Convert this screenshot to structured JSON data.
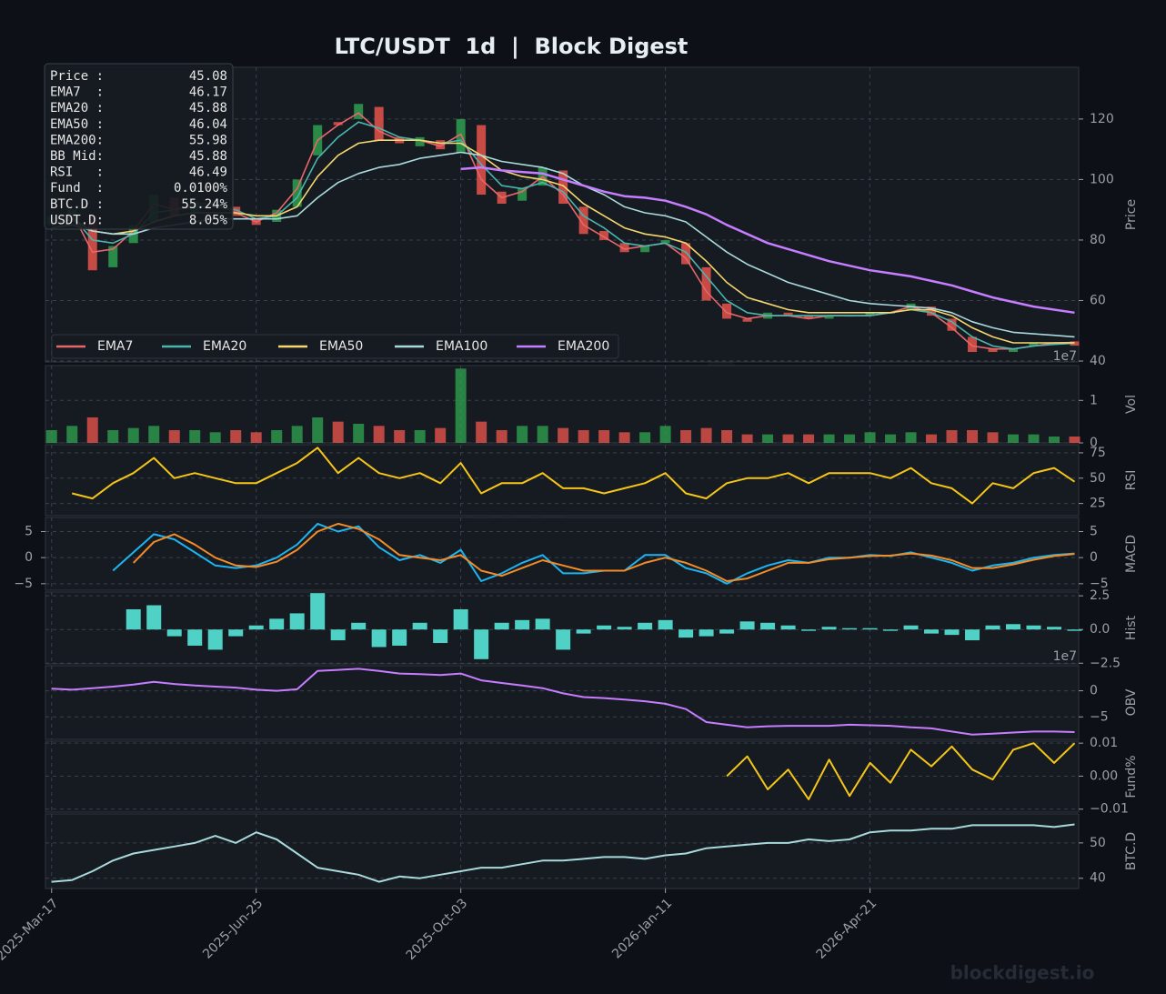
{
  "title": "LTC/USDT  1d  |  Block Digest",
  "watermark": "blockdigest.io",
  "footer": "blockdigest.io",
  "info_box": {
    "rows": [
      [
        "Price :",
        "45.08"
      ],
      [
        "EMA7  :",
        "46.17"
      ],
      [
        "EMA20 :",
        "45.88"
      ],
      [
        "EMA50 :",
        "46.04"
      ],
      [
        "EMA200:",
        "55.98"
      ],
      [
        "BB Mid:",
        "45.88"
      ],
      [
        "RSI   :",
        "46.49"
      ],
      [
        "Fund  :",
        "0.0100%"
      ],
      [
        "BTC.D :",
        "55.24%"
      ],
      [
        "USDT.D:",
        "8.05%"
      ]
    ]
  },
  "chart_data": {
    "type": "financial",
    "x": [
      "2025-03-17",
      "2025-03-27",
      "2025-04-06",
      "2025-04-16",
      "2025-04-26",
      "2025-05-06",
      "2025-05-16",
      "2025-05-26",
      "2025-06-05",
      "2025-06-15",
      "2025-06-25",
      "2025-07-05",
      "2025-07-15",
      "2025-07-25",
      "2025-08-04",
      "2025-08-14",
      "2025-08-24",
      "2025-09-03",
      "2025-09-13",
      "2025-09-23",
      "2025-10-03",
      "2025-10-13",
      "2025-10-23",
      "2025-11-02",
      "2025-11-12",
      "2025-11-22",
      "2025-12-02",
      "2025-12-12",
      "2025-12-22",
      "2026-01-01",
      "2026-01-11",
      "2026-01-21",
      "2026-01-31",
      "2026-02-10",
      "2026-02-20",
      "2026-03-02",
      "2026-03-12",
      "2026-03-22",
      "2026-04-01",
      "2026-04-11",
      "2026-04-21",
      "2026-05-01",
      "2026-05-11",
      "2026-05-21",
      "2026-05-31",
      "2026-06-10",
      "2026-06-20",
      "2026-06-30",
      "2026-07-10",
      "2026-07-20",
      "2026-07-30"
    ],
    "xlim": [
      "2025-03-14",
      "2026-08-01"
    ],
    "xticks": [
      {
        "value": "2025-03-17",
        "label": "2025-Mar-17"
      },
      {
        "value": "2025-06-25",
        "label": "2025-Jun-25"
      },
      {
        "value": "2025-10-03",
        "label": "2025-Oct-03"
      },
      {
        "value": "2026-01-11",
        "label": "2026-Jan-11"
      },
      {
        "value": "2026-04-21",
        "label": "2026-Apr-21"
      }
    ],
    "grid": true,
    "panels": [
      {
        "type": "candlestick",
        "ylabel": "Price",
        "ylim": [
          39.7,
          137.1
        ],
        "yticks": [
          40,
          60,
          80,
          100,
          120
        ],
        "up_color": "#2e9e4f",
        "down_color": "#e5534b",
        "legend": "lower left",
        "open": [
          85,
          88,
          88,
          71,
          79,
          86,
          94,
          89,
          92,
          91,
          87,
          86,
          91,
          108,
          119,
          120,
          124,
          114,
          111,
          113,
          109,
          118,
          96,
          93,
          98,
          103,
          91,
          83,
          79,
          76,
          79,
          79,
          71,
          59,
          54,
          54,
          56,
          55,
          54,
          55,
          55,
          56,
          57,
          58,
          54,
          48,
          44,
          43,
          45,
          46,
          46.5
        ],
        "close": [
          88,
          90,
          70,
          78,
          85,
          95,
          88,
          93,
          92,
          88,
          85,
          90,
          100,
          118,
          118,
          125,
          113,
          112,
          114,
          110,
          120,
          95,
          92,
          97,
          104,
          92,
          82,
          80,
          76,
          78,
          80,
          72,
          60,
          54,
          53,
          56,
          55,
          54,
          55,
          55,
          56,
          56,
          59,
          55,
          50,
          43,
          43,
          44,
          46,
          46,
          45.08
        ],
        "series": [
          {
            "name": "EMA7",
            "color": "#e8666a",
            "values": [
              86,
              89,
              76,
              77,
              83,
              92,
              90,
              92,
              92,
              89,
              86,
              89,
              97,
              113,
              118,
              122,
              116,
              113,
              113,
              111,
              115,
              100,
              94,
              96,
              101,
              95,
              85,
              81,
              77,
              78,
              79,
              74,
              63,
              56,
              54,
              55,
              55,
              54,
              55,
              55,
              55,
              56,
              58,
              56,
              51,
              45,
              44,
              44,
              45,
              46,
              46.17
            ]
          },
          {
            "name": "EMA20",
            "color": "#4ab5ae",
            "values": [
              85,
              88,
              80,
              79,
              82,
              89,
              90,
              91,
              91,
              90,
              87,
              88,
              94,
              107,
              114,
              119,
              117,
              114,
              113,
              112,
              113,
              105,
              98,
              97,
              99,
              96,
              88,
              84,
              79,
              78,
              79,
              76,
              68,
              60,
              56,
              55,
              55,
              55,
              55,
              55,
              55,
              56,
              57,
              56,
              53,
              48,
              45,
              44,
              45,
              45.5,
              45.88
            ]
          },
          {
            "name": "EMA50",
            "color": "#f5d76e",
            "values": [
              85,
              87,
              83,
              82,
              83,
              86,
              88,
              89,
              89,
              89,
              88,
              88,
              91,
              101,
              108,
              112,
              113,
              113,
              113,
              112,
              112,
              108,
              103,
              101,
              100,
              98,
              92,
              88,
              84,
              82,
              81,
              79,
              73,
              66,
              61,
              59,
              57,
              56,
              56,
              56,
              56,
              56,
              57,
              57,
              55,
              51,
              48,
              46,
              46,
              46,
              46.04
            ]
          },
          {
            "name": "EMA100",
            "color": "#a8dadc",
            "values": [
              84,
              85,
              83,
              82,
              82,
              84,
              85,
              86,
              87,
              87,
              87,
              87,
              88,
              94,
              99,
              102,
              104,
              105,
              107,
              108,
              109,
              108,
              106,
              105,
              104,
              102,
              98,
              95,
              91,
              89,
              88,
              86,
              81,
              76,
              72,
              69,
              66,
              64,
              62,
              60,
              59,
              58.5,
              58,
              57.5,
              56,
              53,
              51,
              49.5,
              49,
              48.5,
              48
            ]
          },
          {
            "name": "EMA200",
            "color": "#c77dff",
            "values": [
              null,
              null,
              null,
              null,
              null,
              null,
              null,
              null,
              null,
              null,
              null,
              null,
              null,
              null,
              null,
              null,
              null,
              null,
              null,
              null,
              103.5,
              104,
              103,
              102.5,
              102,
              100,
              98,
              96,
              94.5,
              94,
              93,
              91,
              88.5,
              85,
              82,
              79,
              77,
              75,
              73,
              71.5,
              70,
              69,
              68,
              66.5,
              65,
              63,
              61,
              59.5,
              58,
              57,
              55.98
            ]
          }
        ]
      },
      {
        "type": "bar",
        "ylabel": "Vol",
        "ylim": [
          0,
          18200000
        ],
        "yticks": [
          0,
          {
            "value": 10000000,
            "label": "1"
          }
        ],
        "offset_label": "1e7",
        "values": [
          3000000,
          4000000,
          6000000,
          3000000,
          3500000,
          4000000,
          3000000,
          3000000,
          2500000,
          3000000,
          2500000,
          3000000,
          4000000,
          6000000,
          5000000,
          4500000,
          4000000,
          3000000,
          3000000,
          3500000,
          17500000,
          5000000,
          3000000,
          4000000,
          4000000,
          3500000,
          3000000,
          3000000,
          2500000,
          2500000,
          4000000,
          3000000,
          3500000,
          3000000,
          2000000,
          2000000,
          2000000,
          2000000,
          2000000,
          2000000,
          2500000,
          2000000,
          2500000,
          2000000,
          3000000,
          3000000,
          2500000,
          2000000,
          2000000,
          1500000,
          1500000
        ]
      },
      {
        "type": "line",
        "ylabel": "RSI",
        "ylim": [
          13,
          83
        ],
        "yticks": [
          25,
          50,
          75
        ],
        "series": [
          {
            "color": "#f5c518",
            "values": [
              null,
              35,
              30,
              45,
              55,
              70,
              50,
              55,
              50,
              45,
              45,
              55,
              65,
              80,
              55,
              70,
              55,
              50,
              55,
              45,
              65,
              35,
              45,
              45,
              55,
              40,
              40,
              35,
              40,
              45,
              55,
              35,
              30,
              45,
              50,
              50,
              55,
              45,
              55,
              55,
              55,
              50,
              60,
              45,
              40,
              25,
              45,
              40,
              55,
              60,
              46.49
            ]
          }
        ]
      },
      {
        "type": "line",
        "ylabel": "MACD",
        "ylim": [
          -6.25,
          7.7
        ],
        "yticks": [
          {
            "value": -5,
            "label": "−5"
          },
          0,
          5
        ],
        "left_ticks": true,
        "series": [
          {
            "color": "#1eb4f0",
            "values": [
              null,
              null,
              null,
              -2.5,
              1,
              4.5,
              3.5,
              1,
              -1.5,
              -2,
              -1.5,
              0,
              2.5,
              6.5,
              5,
              6,
              2,
              -0.5,
              0.5,
              -1,
              1.5,
              -4.5,
              -3,
              -1,
              0.5,
              -3,
              -3,
              -2.5,
              -2.5,
              0.5,
              0.5,
              -2,
              -3,
              -5,
              -3,
              -1.5,
              -0.5,
              -1,
              0,
              0,
              0.5,
              0.3,
              1,
              0,
              -1,
              -2.5,
              -1.5,
              -1,
              0,
              0.5,
              0.8
            ]
          },
          {
            "color": "#f28c28",
            "values": [
              null,
              null,
              null,
              null,
              -1,
              3,
              4.5,
              2.5,
              0,
              -1.5,
              -1.8,
              -0.8,
              1.5,
              5,
              6.5,
              5.5,
              3.5,
              0.5,
              0,
              -0.5,
              0.5,
              -2.5,
              -3.5,
              -2,
              -0.5,
              -1.5,
              -2.5,
              -2.5,
              -2.5,
              -1,
              0,
              -1,
              -2.5,
              -4.5,
              -4,
              -2.5,
              -1,
              -1,
              -0.3,
              0,
              0.3,
              0.4,
              0.8,
              0.4,
              -0.5,
              -2,
              -2,
              -1.3,
              -0.4,
              0.3,
              0.7
            ]
          }
        ]
      },
      {
        "type": "histogram",
        "ylabel": "Hist",
        "ylim": [
          -2.55,
          2.78
        ],
        "yticks": [
          {
            "value": -2.5,
            "label": "−2.5"
          },
          {
            "value": 0,
            "label": "0.0"
          },
          2.5
        ],
        "color": "#4fd1c5",
        "values": [
          null,
          null,
          null,
          null,
          1.5,
          1.8,
          -0.5,
          -1.2,
          -1.5,
          -0.5,
          0.3,
          0.8,
          1.2,
          2.7,
          -0.8,
          0.5,
          -1.3,
          -1.2,
          0.5,
          -1,
          1.5,
          -2.2,
          0.5,
          0.7,
          0.8,
          -1.5,
          -0.3,
          0.3,
          0.2,
          0.5,
          0.7,
          -0.6,
          -0.5,
          -0.3,
          0.6,
          0.5,
          0.3,
          -0.1,
          0.2,
          0.1,
          0.1,
          -0.1,
          0.3,
          -0.3,
          -0.4,
          -0.8,
          0.3,
          0.4,
          0.3,
          0.2,
          -0.1
        ]
      },
      {
        "type": "line",
        "ylabel": "OBV",
        "ylim": [
          -93000000,
          48000000
        ],
        "yticks": [
          {
            "value": -50000000,
            "label": "−5"
          },
          0
        ],
        "offset_label": "1e7",
        "series": [
          {
            "color": "#c77dff",
            "values": [
              4000000,
              2000000,
              5000000,
              8000000,
              12000000,
              17000000,
              13000000,
              10000000,
              8000000,
              6000000,
              2000000,
              0,
              3000000,
              38000000,
              40000000,
              42000000,
              38000000,
              33000000,
              32000000,
              30000000,
              33000000,
              20000000,
              15000000,
              10000000,
              5000000,
              -5000000,
              -12000000,
              -14000000,
              -17000000,
              -20000000,
              -25000000,
              -35000000,
              -60000000,
              -65000000,
              -70000000,
              -68000000,
              -67000000,
              -67000000,
              -67000000,
              -65000000,
              -66000000,
              -67000000,
              -70000000,
              -72000000,
              -78000000,
              -84000000,
              -82000000,
              -80000000,
              -78000000,
              -78000000,
              -79000000
            ]
          }
        ]
      },
      {
        "type": "line",
        "ylabel": "Fund%",
        "ylim": [
          -0.0109,
          0.0106
        ],
        "yticks": [
          {
            "value": -0.01,
            "label": "−0.01"
          },
          {
            "value": 0,
            "label": "0.00"
          },
          0.01
        ],
        "series": [
          {
            "color": "#f5c518",
            "values": [
              null,
              null,
              null,
              null,
              null,
              null,
              null,
              null,
              null,
              null,
              null,
              null,
              null,
              null,
              null,
              null,
              null,
              null,
              null,
              null,
              null,
              null,
              null,
              null,
              null,
              null,
              null,
              null,
              null,
              null,
              null,
              null,
              null,
              0,
              0.006,
              -0.004,
              0.002,
              -0.007,
              0.005,
              -0.006,
              0.004,
              -0.002,
              0.008,
              0.003,
              0.009,
              0.002,
              -0.001,
              0.008,
              0.01,
              0.004,
              0.01
            ]
          }
        ]
      },
      {
        "type": "line",
        "ylabel": "BTC.D",
        "ylim": [
          37.1,
          58.2
        ],
        "yticks": [
          40,
          50
        ],
        "series": [
          {
            "color": "#a8dadc",
            "values": [
              39,
              39.5,
              42,
              45,
              47,
              48,
              49,
              50,
              52,
              50,
              53,
              51,
              47,
              43,
              42,
              41,
              39,
              40.5,
              40,
              41,
              42,
              43,
              43,
              44,
              45,
              45,
              45.5,
              46,
              46,
              45.5,
              46.5,
              47,
              48.5,
              49,
              49.5,
              50,
              50,
              51,
              50.5,
              51,
              53,
              53.5,
              53.5,
              54,
              54,
              55,
              55,
              55,
              55,
              54.5,
              55.24
            ]
          }
        ]
      }
    ]
  }
}
